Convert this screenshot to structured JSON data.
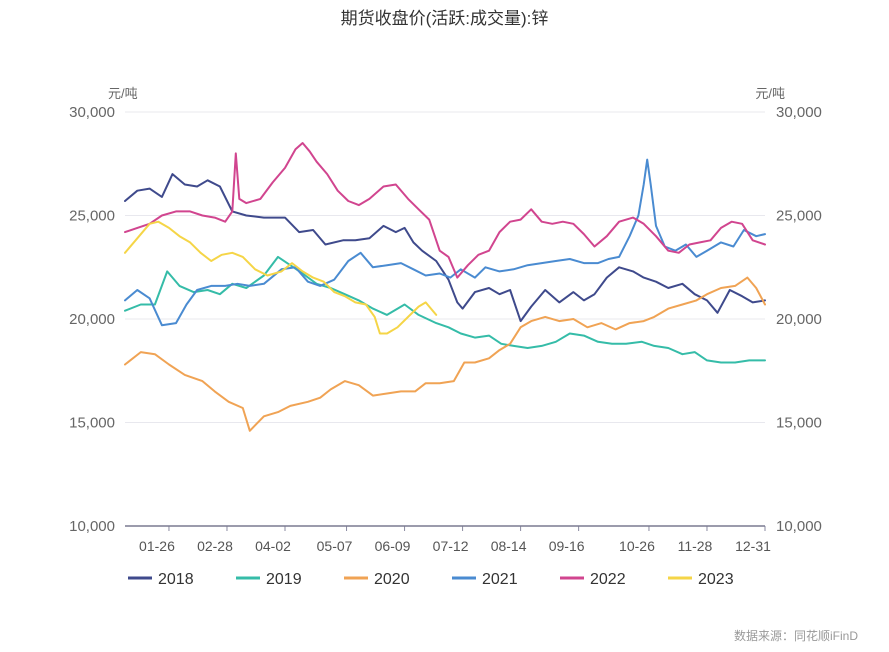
{
  "chart_data": {
    "type": "line",
    "title": "期货收盘价(活跃:成交量):锌",
    "ylabel_left": "元/吨",
    "ylabel_right": "元/吨",
    "ylim": [
      10000,
      30000
    ],
    "yticks": [
      "10,000",
      "15,000",
      "20,000",
      "25,000",
      "30,000"
    ],
    "x_range": [
      1,
      365
    ],
    "xticks": [
      {
        "label": "01-26",
        "x": 26
      },
      {
        "label": "02-28",
        "x": 59
      },
      {
        "label": "04-02",
        "x": 92
      },
      {
        "label": "05-07",
        "x": 127
      },
      {
        "label": "06-09",
        "x": 160
      },
      {
        "label": "07-12",
        "x": 193
      },
      {
        "label": "08-14",
        "x": 226
      },
      {
        "label": "09-16",
        "x": 259
      },
      {
        "label": "10-26",
        "x": 299
      },
      {
        "label": "11-28",
        "x": 332
      },
      {
        "label": "12-31",
        "x": 365
      }
    ],
    "grid": true,
    "legend_position": "bottom",
    "series": [
      {
        "name": "2018",
        "color": "#3f4a8c",
        "points": [
          [
            1,
            25700
          ],
          [
            8,
            26200
          ],
          [
            15,
            26300
          ],
          [
            22,
            25900
          ],
          [
            28,
            27000
          ],
          [
            35,
            26500
          ],
          [
            42,
            26400
          ],
          [
            48,
            26700
          ],
          [
            55,
            26400
          ],
          [
            62,
            25200
          ],
          [
            70,
            25000
          ],
          [
            80,
            24900
          ],
          [
            92,
            24900
          ],
          [
            100,
            24200
          ],
          [
            108,
            24300
          ],
          [
            115,
            23600
          ],
          [
            125,
            23800
          ],
          [
            132,
            23800
          ],
          [
            140,
            23900
          ],
          [
            148,
            24500
          ],
          [
            155,
            24200
          ],
          [
            160,
            24400
          ],
          [
            165,
            23700
          ],
          [
            170,
            23300
          ],
          [
            178,
            22800
          ],
          [
            185,
            21900
          ],
          [
            190,
            20800
          ],
          [
            193,
            20500
          ],
          [
            200,
            21300
          ],
          [
            208,
            21500
          ],
          [
            214,
            21200
          ],
          [
            220,
            21400
          ],
          [
            226,
            19900
          ],
          [
            232,
            20600
          ],
          [
            240,
            21400
          ],
          [
            248,
            20800
          ],
          [
            256,
            21300
          ],
          [
            262,
            20900
          ],
          [
            268,
            21200
          ],
          [
            275,
            22000
          ],
          [
            282,
            22500
          ],
          [
            290,
            22300
          ],
          [
            296,
            22000
          ],
          [
            303,
            21800
          ],
          [
            310,
            21500
          ],
          [
            318,
            21700
          ],
          [
            325,
            21200
          ],
          [
            332,
            20900
          ],
          [
            338,
            20300
          ],
          [
            345,
            21400
          ],
          [
            352,
            21100
          ],
          [
            358,
            20800
          ],
          [
            365,
            20900
          ]
        ]
      },
      {
        "name": "2019",
        "color": "#35bca8",
        "points": [
          [
            1,
            20400
          ],
          [
            10,
            20700
          ],
          [
            18,
            20700
          ],
          [
            25,
            22300
          ],
          [
            32,
            21600
          ],
          [
            40,
            21300
          ],
          [
            48,
            21400
          ],
          [
            55,
            21200
          ],
          [
            62,
            21700
          ],
          [
            70,
            21500
          ],
          [
            80,
            22100
          ],
          [
            88,
            23000
          ],
          [
            95,
            22600
          ],
          [
            102,
            22200
          ],
          [
            110,
            21700
          ],
          [
            118,
            21500
          ],
          [
            126,
            21200
          ],
          [
            134,
            20900
          ],
          [
            142,
            20500
          ],
          [
            150,
            20200
          ],
          [
            160,
            20700
          ],
          [
            168,
            20200
          ],
          [
            178,
            19800
          ],
          [
            185,
            19600
          ],
          [
            192,
            19300
          ],
          [
            200,
            19100
          ],
          [
            208,
            19200
          ],
          [
            215,
            18800
          ],
          [
            222,
            18700
          ],
          [
            230,
            18600
          ],
          [
            238,
            18700
          ],
          [
            246,
            18900
          ],
          [
            254,
            19300
          ],
          [
            262,
            19200
          ],
          [
            270,
            18900
          ],
          [
            278,
            18800
          ],
          [
            286,
            18800
          ],
          [
            295,
            18900
          ],
          [
            302,
            18700
          ],
          [
            310,
            18600
          ],
          [
            318,
            18300
          ],
          [
            325,
            18400
          ],
          [
            332,
            18000
          ],
          [
            340,
            17900
          ],
          [
            348,
            17900
          ],
          [
            356,
            18000
          ],
          [
            365,
            18000
          ]
        ]
      },
      {
        "name": "2020",
        "color": "#f0a354",
        "points": [
          [
            1,
            17800
          ],
          [
            10,
            18400
          ],
          [
            18,
            18300
          ],
          [
            26,
            17800
          ],
          [
            35,
            17300
          ],
          [
            45,
            17000
          ],
          [
            52,
            16500
          ],
          [
            60,
            16000
          ],
          [
            68,
            15700
          ],
          [
            72,
            14600
          ],
          [
            80,
            15300
          ],
          [
            88,
            15500
          ],
          [
            95,
            15800
          ],
          [
            105,
            16000
          ],
          [
            112,
            16200
          ],
          [
            118,
            16600
          ],
          [
            126,
            17000
          ],
          [
            134,
            16800
          ],
          [
            142,
            16300
          ],
          [
            150,
            16400
          ],
          [
            158,
            16500
          ],
          [
            166,
            16500
          ],
          [
            172,
            16900
          ],
          [
            180,
            16900
          ],
          [
            188,
            17000
          ],
          [
            194,
            17900
          ],
          [
            200,
            17900
          ],
          [
            208,
            18100
          ],
          [
            214,
            18500
          ],
          [
            220,
            18800
          ],
          [
            226,
            19600
          ],
          [
            232,
            19900
          ],
          [
            240,
            20100
          ],
          [
            248,
            19900
          ],
          [
            256,
            20000
          ],
          [
            264,
            19600
          ],
          [
            272,
            19800
          ],
          [
            280,
            19500
          ],
          [
            288,
            19800
          ],
          [
            296,
            19900
          ],
          [
            302,
            20100
          ],
          [
            310,
            20500
          ],
          [
            318,
            20700
          ],
          [
            326,
            20900
          ],
          [
            332,
            21200
          ],
          [
            340,
            21500
          ],
          [
            348,
            21600
          ],
          [
            355,
            22000
          ],
          [
            360,
            21500
          ],
          [
            365,
            20700
          ]
        ]
      },
      {
        "name": "2021",
        "color": "#4a8bd1",
        "points": [
          [
            1,
            20900
          ],
          [
            8,
            21400
          ],
          [
            15,
            21000
          ],
          [
            22,
            19700
          ],
          [
            30,
            19800
          ],
          [
            36,
            20700
          ],
          [
            42,
            21400
          ],
          [
            50,
            21600
          ],
          [
            58,
            21600
          ],
          [
            65,
            21700
          ],
          [
            72,
            21600
          ],
          [
            80,
            21700
          ],
          [
            90,
            22400
          ],
          [
            98,
            22500
          ],
          [
            105,
            21800
          ],
          [
            112,
            21600
          ],
          [
            120,
            21900
          ],
          [
            128,
            22800
          ],
          [
            135,
            23200
          ],
          [
            142,
            22500
          ],
          [
            150,
            22600
          ],
          [
            158,
            22700
          ],
          [
            165,
            22400
          ],
          [
            172,
            22100
          ],
          [
            180,
            22200
          ],
          [
            186,
            22000
          ],
          [
            192,
            22400
          ],
          [
            200,
            22000
          ],
          [
            206,
            22500
          ],
          [
            214,
            22300
          ],
          [
            222,
            22400
          ],
          [
            230,
            22600
          ],
          [
            238,
            22700
          ],
          [
            246,
            22800
          ],
          [
            254,
            22900
          ],
          [
            262,
            22700
          ],
          [
            270,
            22700
          ],
          [
            276,
            22900
          ],
          [
            282,
            23000
          ],
          [
            288,
            24000
          ],
          [
            293,
            25000
          ],
          [
            296,
            26500
          ],
          [
            298,
            27700
          ],
          [
            300,
            26500
          ],
          [
            303,
            24500
          ],
          [
            308,
            23500
          ],
          [
            314,
            23300
          ],
          [
            320,
            23600
          ],
          [
            326,
            23000
          ],
          [
            332,
            23300
          ],
          [
            340,
            23700
          ],
          [
            347,
            23500
          ],
          [
            353,
            24300
          ],
          [
            360,
            24000
          ],
          [
            365,
            24100
          ]
        ]
      },
      {
        "name": "2022",
        "color": "#d1458f",
        "points": [
          [
            1,
            24200
          ],
          [
            8,
            24400
          ],
          [
            15,
            24600
          ],
          [
            22,
            25000
          ],
          [
            30,
            25200
          ],
          [
            38,
            25200
          ],
          [
            45,
            25000
          ],
          [
            52,
            24900
          ],
          [
            58,
            24700
          ],
          [
            62,
            25200
          ],
          [
            64,
            28000
          ],
          [
            66,
            25800
          ],
          [
            70,
            25600
          ],
          [
            78,
            25800
          ],
          [
            85,
            26600
          ],
          [
            92,
            27300
          ],
          [
            98,
            28200
          ],
          [
            102,
            28500
          ],
          [
            106,
            28100
          ],
          [
            110,
            27600
          ],
          [
            116,
            27000
          ],
          [
            122,
            26200
          ],
          [
            128,
            25700
          ],
          [
            134,
            25500
          ],
          [
            140,
            25800
          ],
          [
            148,
            26400
          ],
          [
            155,
            26500
          ],
          [
            162,
            25800
          ],
          [
            168,
            25300
          ],
          [
            174,
            24800
          ],
          [
            180,
            23300
          ],
          [
            185,
            23000
          ],
          [
            190,
            22000
          ],
          [
            196,
            22600
          ],
          [
            202,
            23100
          ],
          [
            208,
            23300
          ],
          [
            214,
            24200
          ],
          [
            220,
            24700
          ],
          [
            226,
            24800
          ],
          [
            232,
            25300
          ],
          [
            238,
            24700
          ],
          [
            244,
            24600
          ],
          [
            250,
            24700
          ],
          [
            256,
            24600
          ],
          [
            262,
            24100
          ],
          [
            268,
            23500
          ],
          [
            275,
            24000
          ],
          [
            282,
            24700
          ],
          [
            290,
            24900
          ],
          [
            296,
            24600
          ],
          [
            303,
            24000
          ],
          [
            310,
            23300
          ],
          [
            316,
            23200
          ],
          [
            322,
            23600
          ],
          [
            328,
            23700
          ],
          [
            334,
            23800
          ],
          [
            340,
            24400
          ],
          [
            346,
            24700
          ],
          [
            352,
            24600
          ],
          [
            358,
            23800
          ],
          [
            365,
            23600
          ]
        ]
      },
      {
        "name": "2023",
        "color": "#f5d547",
        "points": [
          [
            1,
            23200
          ],
          [
            8,
            23900
          ],
          [
            15,
            24600
          ],
          [
            20,
            24700
          ],
          [
            26,
            24400
          ],
          [
            32,
            24000
          ],
          [
            38,
            23700
          ],
          [
            44,
            23200
          ],
          [
            50,
            22800
          ],
          [
            56,
            23100
          ],
          [
            62,
            23200
          ],
          [
            68,
            23000
          ],
          [
            75,
            22400
          ],
          [
            82,
            22100
          ],
          [
            90,
            22300
          ],
          [
            96,
            22700
          ],
          [
            102,
            22300
          ],
          [
            108,
            22000
          ],
          [
            114,
            21800
          ],
          [
            120,
            21300
          ],
          [
            126,
            21100
          ],
          [
            132,
            20800
          ],
          [
            138,
            20700
          ],
          [
            143,
            20100
          ],
          [
            146,
            19300
          ],
          [
            150,
            19300
          ],
          [
            156,
            19600
          ],
          [
            162,
            20100
          ],
          [
            168,
            20600
          ],
          [
            172,
            20800
          ],
          [
            178,
            20200
          ]
        ]
      }
    ]
  },
  "source": "数据来源：同花顺iFinD"
}
